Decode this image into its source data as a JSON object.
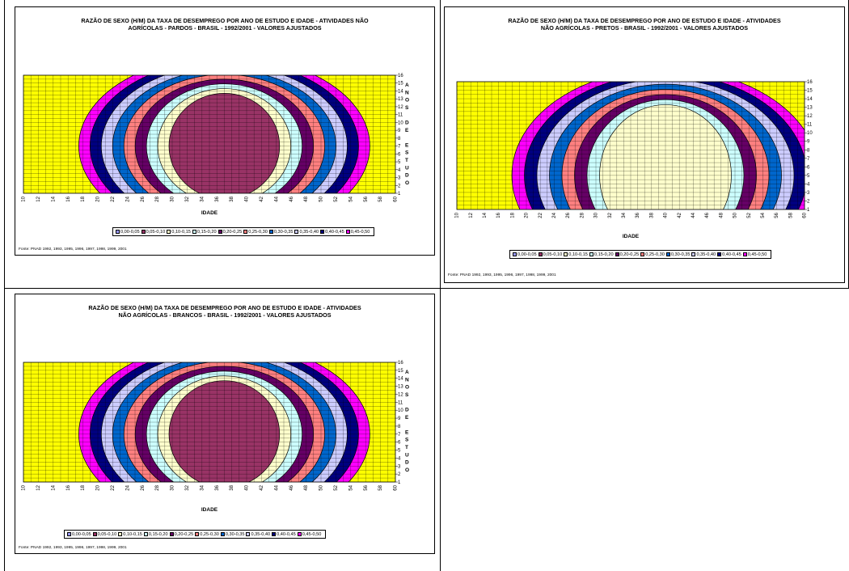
{
  "page": {
    "source_label": "Fonte: PNAD 1992, 1993, 1995, 1996, 1997, 1998, 1999, 2001"
  },
  "legend": [
    {
      "label": "0,00-0,05",
      "color": "#9999ff"
    },
    {
      "label": "0,05-0,10",
      "color": "#993366"
    },
    {
      "label": "0,10-0,15",
      "color": "#ffffcc"
    },
    {
      "label": "0,15-0,20",
      "color": "#ccffff"
    },
    {
      "label": "0,20-0,25",
      "color": "#660066"
    },
    {
      "label": "0,25-0,30",
      "color": "#ff8080"
    },
    {
      "label": "0,30-0,35",
      "color": "#0066cc"
    },
    {
      "label": "0,35-0,40",
      "color": "#ccccff"
    },
    {
      "label": "0,40-0,45",
      "color": "#000080"
    },
    {
      "label": "0,45-0,50",
      "color": "#ff00ff"
    }
  ],
  "chart_data": [
    {
      "type": "heatmap",
      "title_lines": [
        "RAZÃO DE SEXO (H/M) DA TAXA DE DESEMPREGO POR ANO DE ESTUDO E IDADE - ATIVIDADES NÃO",
        "AGRÍCOLAS - PARDOS - BRASIL - 1992/2001 - VALORES AJUSTADOS"
      ],
      "xlabel": "IDADE",
      "ylabel_letters": [
        "A",
        "N",
        "O",
        "S",
        "",
        "D",
        "E",
        "",
        "E",
        "S",
        "T",
        "U",
        "D",
        "O"
      ],
      "x_ticks": [
        10,
        12,
        14,
        16,
        18,
        20,
        22,
        24,
        26,
        28,
        30,
        32,
        34,
        36,
        38,
        40,
        42,
        44,
        46,
        48,
        50,
        52,
        54,
        56,
        58,
        60
      ],
      "y_ticks": [
        1,
        2,
        3,
        4,
        5,
        6,
        7,
        8,
        9,
        10,
        11,
        12,
        13,
        14,
        15,
        16
      ],
      "xlim": [
        10,
        60
      ],
      "ylim": [
        1,
        16
      ],
      "center": {
        "x": 37,
        "y": 7
      },
      "outer_color": "#ffff00",
      "bands": [
        {
          "range": "0,45-0,50",
          "color": "#ff00ff"
        },
        {
          "range": "0,40-0,45",
          "color": "#000080"
        },
        {
          "range": "0,35-0,40",
          "color": "#ccccff"
        },
        {
          "range": "0,30-0,35",
          "color": "#0066cc"
        },
        {
          "range": "0,25-0,30",
          "color": "#ff8080"
        },
        {
          "range": "0,20-0,25",
          "color": "#660066"
        },
        {
          "range": "0,15-0,20",
          "color": "#ccffff"
        },
        {
          "range": "0,10-0,15",
          "color": "#ffffcc"
        },
        {
          "range": "0,05-0,10",
          "color": "#993366"
        }
      ]
    },
    {
      "type": "heatmap",
      "title_lines": [
        "RAZÃO DE SEXO (H/M) DA TAXA DE DESEMPREGO POR ANO DE ESTUDO E IDADE - ATIVIDADES",
        "NÃO AGRÍCOLAS - PRETOS - BRASIL - 1992/2001 - VALORES AJUSTADOS"
      ],
      "xlabel": "IDADE",
      "ylabel_letters": [],
      "x_ticks": [
        10,
        12,
        14,
        16,
        18,
        20,
        22,
        24,
        26,
        28,
        30,
        32,
        34,
        36,
        38,
        40,
        42,
        44,
        46,
        48,
        50,
        52,
        54,
        56,
        58,
        60
      ],
      "y_ticks": [
        1,
        2,
        3,
        4,
        5,
        6,
        7,
        8,
        9,
        10,
        11,
        12,
        13,
        14,
        15,
        16
      ],
      "xlim": [
        10,
        60
      ],
      "ylim": [
        1,
        16
      ],
      "center": {
        "x": 40,
        "y": 5
      },
      "outer_color": "#ffff00",
      "bands": [
        {
          "range": "0,45-0,50",
          "color": "#ff00ff"
        },
        {
          "range": "0,40-0,45",
          "color": "#000080"
        },
        {
          "range": "0,35-0,40",
          "color": "#ccccff"
        },
        {
          "range": "0,30-0,35",
          "color": "#0066cc"
        },
        {
          "range": "0,25-0,30",
          "color": "#ff8080"
        },
        {
          "range": "0,20-0,25",
          "color": "#660066"
        },
        {
          "range": "0,15-0,20",
          "color": "#ccffff"
        },
        {
          "range": "0,10-0,15",
          "color": "#ffffcc"
        }
      ]
    },
    {
      "type": "heatmap",
      "title_lines": [
        "RAZÃO DE SEXO (H/M) DA TAXA DE DESEMPREGO POR ANO DE ESTUDO E IDADE - ATIVIDADES",
        "NÃO AGRÍCOLAS - BRANCOS - BRASIL - 1992/2001 - VALORES AJUSTADOS"
      ],
      "xlabel": "IDADE",
      "ylabel_letters": [
        "A",
        "N",
        "O",
        "S",
        "",
        "D",
        "E",
        "",
        "E",
        "S",
        "T",
        "U",
        "D",
        "O"
      ],
      "x_ticks": [
        10,
        12,
        14,
        16,
        18,
        20,
        22,
        24,
        26,
        28,
        30,
        32,
        34,
        36,
        38,
        40,
        42,
        44,
        46,
        48,
        50,
        52,
        54,
        56,
        58,
        60
      ],
      "y_ticks": [
        1,
        2,
        3,
        4,
        5,
        6,
        7,
        8,
        9,
        10,
        11,
        12,
        13,
        14,
        15,
        16
      ],
      "xlim": [
        10,
        60
      ],
      "ylim": [
        1,
        16
      ],
      "center": {
        "x": 37,
        "y": 7
      },
      "outer_color": "#ffff00",
      "bands": [
        {
          "range": "0,45-0,50",
          "color": "#ff00ff"
        },
        {
          "range": "0,40-0,45",
          "color": "#000080"
        },
        {
          "range": "0,35-0,40",
          "color": "#ccccff"
        },
        {
          "range": "0,30-0,35",
          "color": "#0066cc"
        },
        {
          "range": "0,25-0,30",
          "color": "#ff8080"
        },
        {
          "range": "0,20-0,25",
          "color": "#660066"
        },
        {
          "range": "0,15-0,20",
          "color": "#ccffff"
        },
        {
          "range": "0,10-0,15",
          "color": "#ffffcc"
        },
        {
          "range": "0,05-0,10",
          "color": "#993366"
        }
      ]
    }
  ]
}
